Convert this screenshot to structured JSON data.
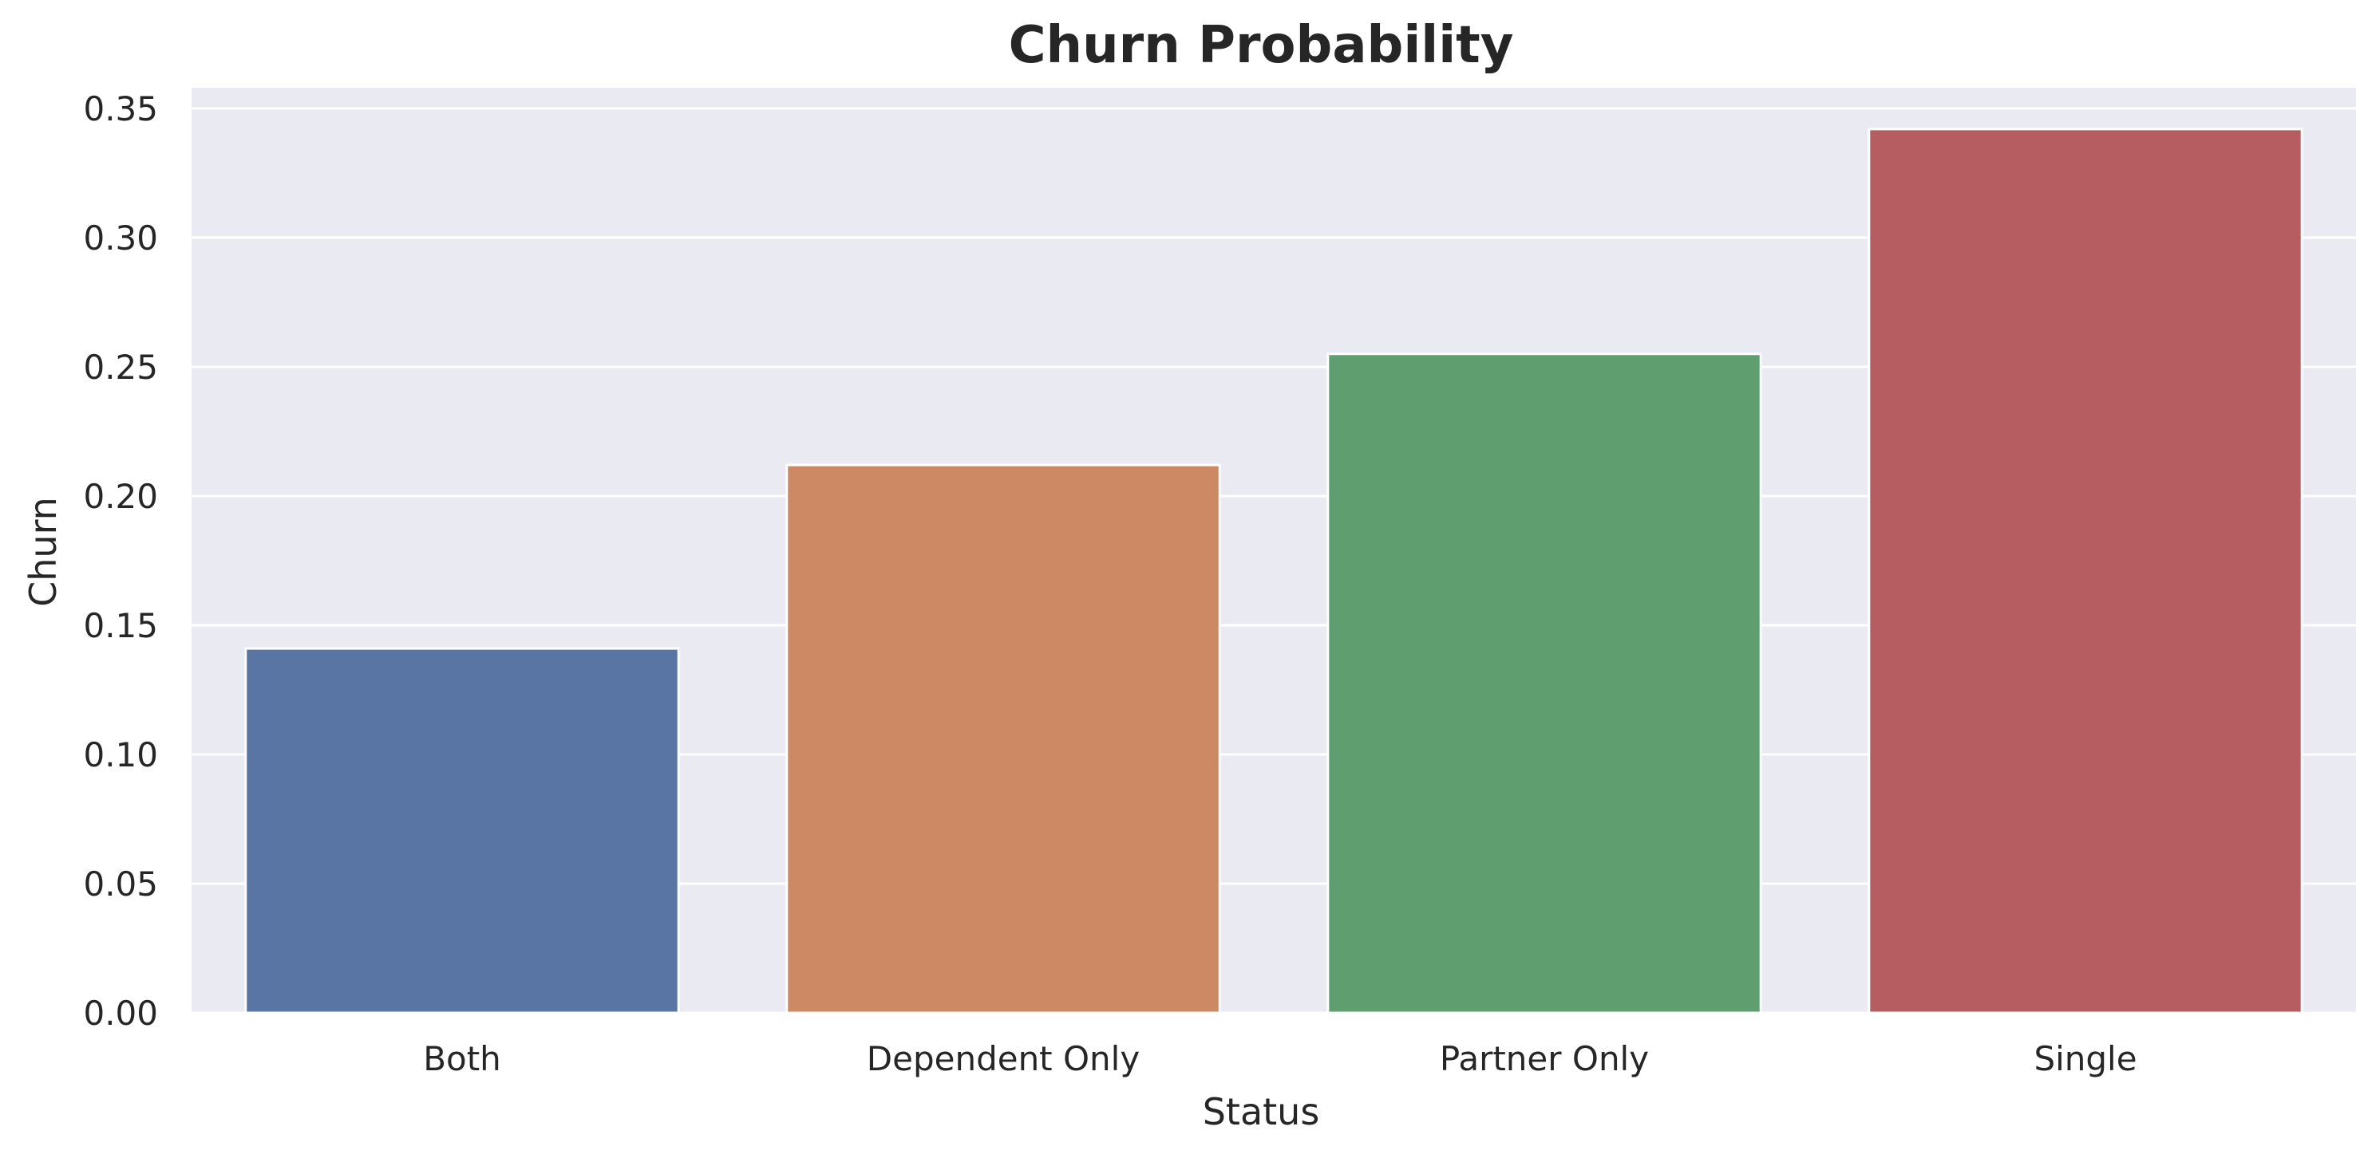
{
  "chart_data": {
    "type": "bar",
    "title": "Churn Probability",
    "xlabel": "Status",
    "ylabel": "Churn",
    "categories": [
      "Both",
      "Dependent Only",
      "Partner Only",
      "Single"
    ],
    "values": [
      0.141,
      0.212,
      0.255,
      0.342
    ],
    "ylim": [
      0,
      0.358
    ],
    "yticks": [
      "0.00",
      "0.05",
      "0.10",
      "0.15",
      "0.20",
      "0.25",
      "0.30",
      "0.35"
    ],
    "grid": true,
    "legend": "none",
    "colors": [
      "#5975a4",
      "#cc8963",
      "#5f9e6e",
      "#b55d60"
    ],
    "background": "#eaeaf2"
  }
}
